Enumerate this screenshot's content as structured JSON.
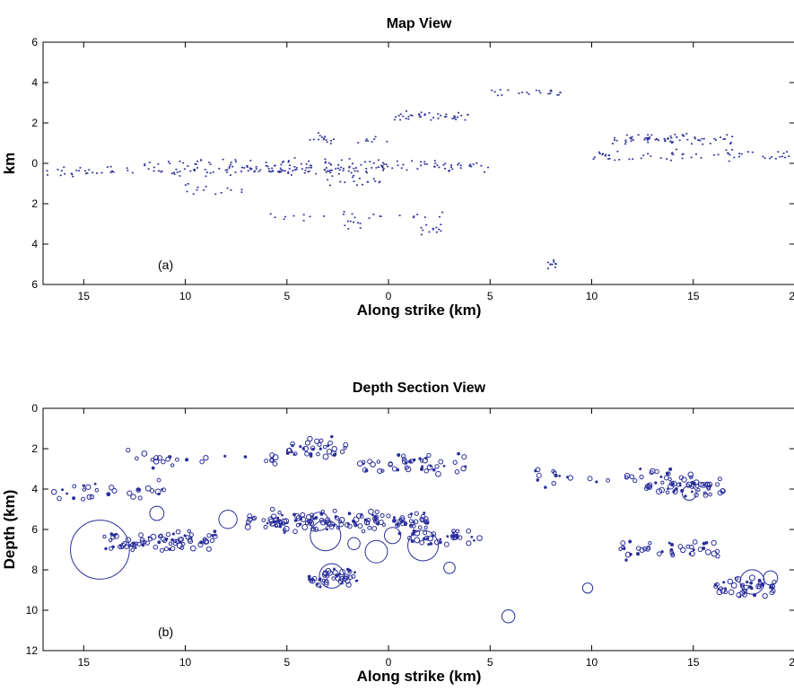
{
  "chart_data": [
    {
      "type": "scatter",
      "panel_label": "(a)",
      "title": "Map View",
      "xlabel": "Along strike (km)",
      "ylabel": "km",
      "xlim": [
        -17,
        20
      ],
      "ylim": [
        6,
        -6
      ],
      "xticks": [
        {
          "value": -15,
          "label": "15"
        },
        {
          "value": -10,
          "label": "10"
        },
        {
          "value": -5,
          "label": "5"
        },
        {
          "value": 0,
          "label": "0"
        },
        {
          "value": 5,
          "label": "5"
        },
        {
          "value": 10,
          "label": "10"
        },
        {
          "value": 15,
          "label": "15"
        },
        {
          "value": 20,
          "label": "20"
        }
      ],
      "yticks": [
        {
          "value": -6,
          "label": "6"
        },
        {
          "value": -4,
          "label": "4"
        },
        {
          "value": -2,
          "label": "2"
        },
        {
          "value": 0,
          "label": "0"
        },
        {
          "value": 2,
          "label": "2"
        },
        {
          "value": 4,
          "label": "4"
        },
        {
          "value": 6,
          "label": "6"
        }
      ],
      "grid": false,
      "marker_color": "#2b2f9a",
      "clusters": [
        {
          "x": [
            -16.8,
            -1
          ],
          "y": -0.35,
          "n": 140
        },
        {
          "x": [
            -1,
            5
          ],
          "y": -0.15,
          "n": 50
        },
        {
          "x": [
            10,
            20
          ],
          "y": 0.4,
          "n": 60
        },
        {
          "x": [
            -12,
            0
          ],
          "y": 0.0,
          "n": 55
        },
        {
          "x": [
            -3.5,
            0
          ],
          "y": -0.9,
          "n": 16
        },
        {
          "x": [
            -10,
            -7
          ],
          "y": -1.3,
          "n": 14
        },
        {
          "x": [
            1.5,
            2.6
          ],
          "y": -3.3,
          "n": 12
        },
        {
          "x": [
            -2.2,
            -1.2
          ],
          "y": -3.0,
          "n": 8
        },
        {
          "x": [
            -4,
            0
          ],
          "y": 1.2,
          "n": 22
        },
        {
          "x": [
            0,
            4
          ],
          "y": 2.3,
          "n": 40
        },
        {
          "x": [
            5,
            8.5
          ],
          "y": 3.5,
          "n": 22
        },
        {
          "x": [
            7.8,
            8.3
          ],
          "y": -5.0,
          "n": 10
        },
        {
          "x": [
            11,
            17
          ],
          "y": 1.2,
          "n": 70
        },
        {
          "x": [
            -6,
            3
          ],
          "y": -2.6,
          "n": 24
        }
      ]
    },
    {
      "type": "scatter",
      "panel_label": "(b)",
      "title": "Depth Section View",
      "xlabel": "Along strike (km)",
      "ylabel": "Depth (km)",
      "xlim": [
        -17,
        20
      ],
      "ylim": [
        0,
        12
      ],
      "xticks": [
        {
          "value": -15,
          "label": "15"
        },
        {
          "value": -10,
          "label": "10"
        },
        {
          "value": -5,
          "label": "5"
        },
        {
          "value": 0,
          "label": "0"
        },
        {
          "value": 5,
          "label": "5"
        },
        {
          "value": 10,
          "label": "10"
        },
        {
          "value": 15,
          "label": "15"
        },
        {
          "value": 20,
          "label": "20"
        }
      ],
      "yticks": [
        {
          "value": 0,
          "label": "0"
        },
        {
          "value": 2,
          "label": "2"
        },
        {
          "value": 4,
          "label": "4"
        },
        {
          "value": 6,
          "label": "6"
        },
        {
          "value": 8,
          "label": "8"
        },
        {
          "value": 10,
          "label": "10"
        },
        {
          "value": 12,
          "label": "12"
        }
      ],
      "grid": false,
      "marker_color": "#2b2f9a",
      "marker": "open circle (size scales with magnitude)",
      "large_events": [
        {
          "x": -14.2,
          "y": 7.0,
          "r_km": 1.45
        },
        {
          "x": -11.4,
          "y": 5.2,
          "r_km": 0.35
        },
        {
          "x": -7.9,
          "y": 5.5,
          "r_km": 0.45
        },
        {
          "x": -3.4,
          "y": 5.6,
          "r_km": 0.45
        },
        {
          "x": -3.1,
          "y": 6.3,
          "r_km": 0.75
        },
        {
          "x": -2.8,
          "y": 8.3,
          "r_km": 0.6
        },
        {
          "x": -1.7,
          "y": 6.7,
          "r_km": 0.3
        },
        {
          "x": -0.6,
          "y": 7.1,
          "r_km": 0.55
        },
        {
          "x": 0.2,
          "y": 6.3,
          "r_km": 0.4
        },
        {
          "x": 1.7,
          "y": 6.8,
          "r_km": 0.75
        },
        {
          "x": 3.0,
          "y": 7.9,
          "r_km": 0.28
        },
        {
          "x": 5.9,
          "y": 10.3,
          "r_km": 0.32
        },
        {
          "x": 9.8,
          "y": 8.9,
          "r_km": 0.25
        },
        {
          "x": 14.8,
          "y": 4.2,
          "r_km": 0.35
        },
        {
          "x": 17.9,
          "y": 8.6,
          "r_km": 0.6
        },
        {
          "x": 18.8,
          "y": 8.4,
          "r_km": 0.35
        }
      ],
      "clusters": [
        {
          "x": [
            -14,
            -8.5
          ],
          "y": 6.6,
          "n": 80
        },
        {
          "x": [
            -7,
            -5
          ],
          "y": 5.6,
          "n": 25
        },
        {
          "x": [
            -5,
            -2
          ],
          "y": 2.0,
          "n": 35
        },
        {
          "x": [
            -5.5,
            2
          ],
          "y": 5.6,
          "n": 120
        },
        {
          "x": [
            -4,
            -1.5
          ],
          "y": 8.4,
          "n": 45
        },
        {
          "x": [
            -1.5,
            4
          ],
          "y": 2.8,
          "n": 45
        },
        {
          "x": [
            1,
            4.5
          ],
          "y": 6.4,
          "n": 35
        },
        {
          "x": [
            7,
            14
          ],
          "y": 3.3,
          "n": 30
        },
        {
          "x": [
            12.5,
            16.5
          ],
          "y": 3.9,
          "n": 55
        },
        {
          "x": [
            16,
            19
          ],
          "y": 8.9,
          "n": 45
        },
        {
          "x": [
            11,
            16.5
          ],
          "y": 7.0,
          "n": 40
        },
        {
          "x": [
            -16.5,
            -11
          ],
          "y": 4.2,
          "n": 30
        },
        {
          "x": [
            -13,
            -5
          ],
          "y": 2.5,
          "n": 25
        }
      ]
    }
  ]
}
